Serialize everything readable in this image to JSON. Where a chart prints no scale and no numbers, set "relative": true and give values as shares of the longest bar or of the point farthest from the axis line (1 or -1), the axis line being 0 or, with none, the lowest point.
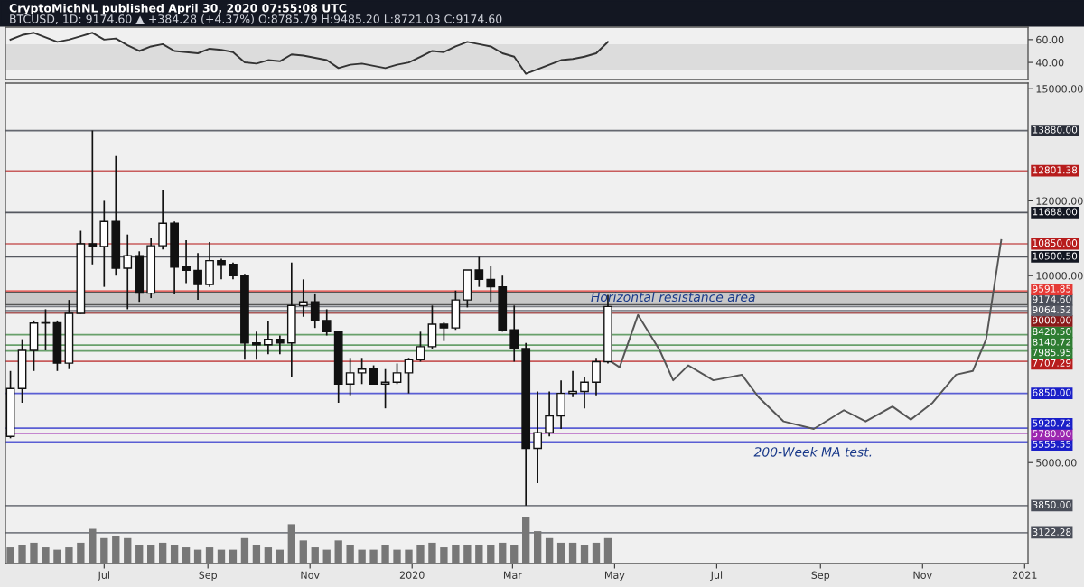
{
  "chart_data": [
    {
      "type": "line",
      "title": "CryptoMichNL published April 30, 2020 07:55:08 UTC",
      "subtitle": "BTCUSD, 1D: 9174.60 ▲ +384.28 (+4.37%) O:8785.79 H:9485.20 L:8721.03 C:9174.60",
      "x": [
        "2019-05-06",
        "2019-05-13",
        "2019-05-20",
        "2019-05-27",
        "2019-06-03",
        "2019-06-10",
        "2019-06-17",
        "2019-06-24",
        "2019-07-01",
        "2019-07-08",
        "2019-07-15",
        "2019-07-22",
        "2019-07-29",
        "2019-08-05",
        "2019-08-12",
        "2019-08-19",
        "2019-08-26",
        "2019-09-02",
        "2019-09-09",
        "2019-09-16",
        "2019-09-23",
        "2019-09-30",
        "2019-10-07",
        "2019-10-14",
        "2019-10-21",
        "2019-10-28",
        "2019-11-04",
        "2019-11-11",
        "2019-11-18",
        "2019-11-25",
        "2019-12-02",
        "2019-12-09",
        "2019-12-16",
        "2019-12-23",
        "2019-12-30",
        "2020-01-06",
        "2020-01-13",
        "2020-01-20",
        "2020-01-27",
        "2020-02-03",
        "2020-02-10",
        "2020-02-17",
        "2020-02-24",
        "2020-03-02",
        "2020-03-09",
        "2020-03-16",
        "2020-03-23",
        "2020-03-30",
        "2020-04-06",
        "2020-04-13",
        "2020-04-20",
        "2020-04-27"
      ],
      "series": [
        {
          "color": "#333333",
          "values": [
            60,
            64,
            66,
            62,
            58,
            60,
            63,
            66,
            60,
            61,
            55,
            50,
            54,
            56,
            50,
            49,
            48,
            52,
            51,
            49,
            40,
            39,
            42,
            41,
            47,
            46,
            44,
            42,
            35,
            38,
            39,
            37,
            35,
            38,
            40,
            45,
            50,
            49,
            54,
            58,
            56,
            54,
            48,
            45,
            30,
            34,
            38,
            42,
            43,
            45,
            48,
            58
          ]
        }
      ],
      "xlim": [
        "2019-05-03",
        "2021-01-03"
      ],
      "ylim": [
        25,
        71
      ],
      "yticks": [
        {
          "value": 40,
          "label": "40.00"
        },
        {
          "value": 60,
          "label": "60.00"
        }
      ],
      "bands": [
        {
          "axis": "y",
          "from": 33,
          "to": 56,
          "color": "#dcdcdc"
        }
      ],
      "tick_labels": "y",
      "grid": false
    },
    {
      "type": "candlestick",
      "x": [
        "2019-05-06",
        "2019-05-13",
        "2019-05-20",
        "2019-05-27",
        "2019-06-03",
        "2019-06-10",
        "2019-06-17",
        "2019-06-24",
        "2019-07-01",
        "2019-07-08",
        "2019-07-15",
        "2019-07-22",
        "2019-07-29",
        "2019-08-05",
        "2019-08-12",
        "2019-08-19",
        "2019-08-26",
        "2019-09-02",
        "2019-09-09",
        "2019-09-16",
        "2019-09-23",
        "2019-09-30",
        "2019-10-07",
        "2019-10-14",
        "2019-10-21",
        "2019-10-28",
        "2019-11-04",
        "2019-11-11",
        "2019-11-18",
        "2019-11-25",
        "2019-12-02",
        "2019-12-09",
        "2019-12-16",
        "2019-12-23",
        "2019-12-30",
        "2020-01-06",
        "2020-01-13",
        "2020-01-20",
        "2020-01-27",
        "2020-02-03",
        "2020-02-10",
        "2020-02-17",
        "2020-02-24",
        "2020-03-02",
        "2020-03-09",
        "2020-03-16",
        "2020-03-23",
        "2020-03-30",
        "2020-04-06",
        "2020-04-13",
        "2020-04-20",
        "2020-04-27"
      ],
      "ohlc": [
        [
          5700,
          7450,
          5650,
          6980
        ],
        [
          6980,
          8300,
          6600,
          8000
        ],
        [
          8000,
          8800,
          7450,
          8730
        ],
        [
          8730,
          9100,
          8000,
          8740
        ],
        [
          8740,
          8800,
          7450,
          7660
        ],
        [
          7660,
          9350,
          7500,
          8990
        ],
        [
          8990,
          11200,
          8980,
          10850
        ],
        [
          10850,
          13880,
          10300,
          10780
        ],
        [
          10780,
          12000,
          9700,
          11450
        ],
        [
          11450,
          13200,
          10000,
          10200
        ],
        [
          10200,
          11100,
          9100,
          10530
        ],
        [
          10530,
          10650,
          9300,
          9530
        ],
        [
          9530,
          11000,
          9400,
          10800
        ],
        [
          10800,
          12300,
          10700,
          11400
        ],
        [
          11400,
          11450,
          9500,
          10230
        ],
        [
          10230,
          10950,
          9800,
          10140
        ],
        [
          10140,
          10600,
          9350,
          9760
        ],
        [
          9760,
          10900,
          9700,
          10400
        ],
        [
          10400,
          10450,
          9900,
          10300
        ],
        [
          10300,
          10350,
          9900,
          10000
        ],
        [
          10000,
          10050,
          7750,
          8200
        ],
        [
          8200,
          8500,
          7750,
          8150
        ],
        [
          8150,
          8800,
          7900,
          8300
        ],
        [
          8300,
          8400,
          7900,
          8200
        ],
        [
          8200,
          10350,
          7300,
          9200
        ],
        [
          9200,
          9900,
          8900,
          9300
        ],
        [
          9300,
          9500,
          8600,
          8800
        ],
        [
          8800,
          9100,
          8400,
          8500
        ],
        [
          8500,
          8500,
          6600,
          7100
        ],
        [
          7100,
          7800,
          6800,
          7400
        ],
        [
          7400,
          7800,
          7100,
          7500
        ],
        [
          7500,
          7600,
          7100,
          7100
        ],
        [
          7100,
          7500,
          6450,
          7150
        ],
        [
          7150,
          7650,
          7100,
          7400
        ],
        [
          7400,
          7800,
          6850,
          7750
        ],
        [
          7750,
          8500,
          7700,
          8100
        ],
        [
          8100,
          9200,
          8050,
          8700
        ],
        [
          8700,
          8750,
          8250,
          8600
        ],
        [
          8600,
          9600,
          8550,
          9350
        ],
        [
          9350,
          10150,
          9150,
          10150
        ],
        [
          10150,
          10500,
          9700,
          9900
        ],
        [
          9900,
          10250,
          9300,
          9700
        ],
        [
          9700,
          10000,
          8500,
          8550
        ],
        [
          8550,
          9200,
          7700,
          8050
        ],
        [
          8050,
          8200,
          3850,
          5380
        ],
        [
          5380,
          6900,
          4450,
          5800
        ],
        [
          5800,
          6900,
          5700,
          6250
        ],
        [
          6250,
          7200,
          5900,
          6850
        ],
        [
          6850,
          7450,
          6750,
          6900
        ],
        [
          6900,
          7300,
          6450,
          7150
        ],
        [
          7150,
          7800,
          6800,
          7700
        ],
        [
          7700,
          9485,
          7650,
          9174.6
        ]
      ],
      "series": [
        {
          "type": "line",
          "color": "#555555",
          "x": [
            "2020-04-29",
            "2020-05-04",
            "2020-05-15",
            "2020-05-28",
            "2020-06-05",
            "2020-06-14",
            "2020-06-29",
            "2020-07-16",
            "2020-07-26",
            "2020-08-10",
            "2020-08-28",
            "2020-09-15",
            "2020-09-28",
            "2020-10-14",
            "2020-10-25",
            "2020-11-07",
            "2020-11-21",
            "2020-12-01",
            "2020-12-09",
            "2020-12-18"
          ],
          "values": [
            7700,
            7550,
            8950,
            8000,
            7200,
            7600,
            7200,
            7350,
            6750,
            6100,
            5900,
            6400,
            6100,
            6500,
            6150,
            6600,
            7350,
            7450,
            8300,
            10950
          ]
        }
      ],
      "xlim": [
        "2019-05-03",
        "2021-01-03"
      ],
      "ylim": [
        2300,
        15150
      ],
      "xticks": [
        {
          "value": "2019-07-01",
          "label": "Jul"
        },
        {
          "value": "2019-09-01",
          "label": "Sep"
        },
        {
          "value": "2019-11-01",
          "label": "Nov"
        },
        {
          "value": "2020-01-01",
          "label": "2020"
        },
        {
          "value": "2020-03-01",
          "label": "Mar"
        },
        {
          "value": "2020-05-01",
          "label": "May"
        },
        {
          "value": "2020-07-01",
          "label": "Jul"
        },
        {
          "value": "2020-09-01",
          "label": "Sep"
        },
        {
          "value": "2020-11-01",
          "label": "Nov"
        },
        {
          "value": "2021-01-01",
          "label": "2021"
        }
      ],
      "yticks": [
        {
          "value": 5000,
          "label": "5000.00"
        },
        {
          "value": 10000,
          "label": "10000.00"
        },
        {
          "value": 12000,
          "label": "12000.00"
        },
        {
          "value": 15000,
          "label": "15000.00"
        }
      ],
      "ref_lines": [
        {
          "axis": "y",
          "value": 13880,
          "label": "13880.00",
          "color": "#2a2e39"
        },
        {
          "axis": "y",
          "value": 12801.38,
          "label": "12801.38",
          "color": "#b71c1c"
        },
        {
          "axis": "y",
          "value": 11688,
          "label": "11688.00",
          "color": "#131722"
        },
        {
          "axis": "y",
          "value": 10850,
          "label": "10850.00",
          "color": "#b71c1c"
        },
        {
          "axis": "y",
          "value": 10500.5,
          "label": "10500.50",
          "color": "#131722"
        },
        {
          "axis": "y",
          "value": 9591.85,
          "label": "9591.85",
          "color": "#e53935"
        },
        {
          "axis": "y",
          "value": 9174.6,
          "label": "9174.60",
          "color": "#4a4e59"
        },
        {
          "axis": "y",
          "value": 9064.52,
          "label": "9064.52",
          "color": "#5d606b"
        },
        {
          "axis": "y",
          "value": 9000,
          "label": "9000.00",
          "color": "#8b1a1a"
        },
        {
          "axis": "y",
          "value": 8420.5,
          "label": "8420.50",
          "color": "#2e7d32"
        },
        {
          "axis": "y",
          "value": 8140.72,
          "label": "8140.72",
          "color": "#2e7d32"
        },
        {
          "axis": "y",
          "value": 7985.95,
          "label": "7985.95",
          "color": "#2e7d32"
        },
        {
          "axis": "y",
          "value": 7707.29,
          "label": "7707.29",
          "color": "#b71c1c"
        },
        {
          "axis": "y",
          "value": 6850,
          "label": "6850.00",
          "color": "#1a1fc8"
        },
        {
          "axis": "y",
          "value": 5920.72,
          "label": "5920.72",
          "color": "#1a1fc8"
        },
        {
          "axis": "y",
          "value": 5780,
          "label": "5780.00",
          "color": "#9c27b0"
        },
        {
          "axis": "y",
          "value": 5555.55,
          "label": "5555.55",
          "color": "#1a1fc8"
        },
        {
          "axis": "y",
          "value": 3850,
          "label": "3850.00",
          "color": "#4a4e59"
        },
        {
          "axis": "y",
          "value": 3122.28,
          "label": "3122.28",
          "color": "#4a4e59"
        }
      ],
      "bands": [
        {
          "axis": "y",
          "from": 9224,
          "to": 9560,
          "color": "#c8c8c8"
        }
      ],
      "annotations": [
        {
          "text": "Horizontal resistance area",
          "x": "2020-06-05",
          "y": 9400
        },
        "200-Week MA test."
      ],
      "grid": false
    },
    {
      "type": "bar",
      "relative": true,
      "color": "#777777",
      "x": [
        "2019-05-06",
        "2019-05-13",
        "2019-05-20",
        "2019-05-27",
        "2019-06-03",
        "2019-06-10",
        "2019-06-17",
        "2019-06-24",
        "2019-07-01",
        "2019-07-08",
        "2019-07-15",
        "2019-07-22",
        "2019-07-29",
        "2019-08-05",
        "2019-08-12",
        "2019-08-19",
        "2019-08-26",
        "2019-09-02",
        "2019-09-09",
        "2019-09-16",
        "2019-09-23",
        "2019-09-30",
        "2019-10-07",
        "2019-10-14",
        "2019-10-21",
        "2019-10-28",
        "2019-11-04",
        "2019-11-11",
        "2019-11-18",
        "2019-11-25",
        "2019-12-02",
        "2019-12-09",
        "2019-12-16",
        "2019-12-23",
        "2019-12-30",
        "2020-01-06",
        "2020-01-13",
        "2020-01-20",
        "2020-01-27",
        "2020-02-03",
        "2020-02-10",
        "2020-02-17",
        "2020-02-24",
        "2020-03-02",
        "2020-03-09",
        "2020-03-16",
        "2020-03-23",
        "2020-03-30",
        "2020-04-06",
        "2020-04-13",
        "2020-04-20",
        "2020-04-27"
      ],
      "values": [
        0.35,
        0.4,
        0.45,
        0.35,
        0.3,
        0.35,
        0.45,
        0.75,
        0.55,
        0.6,
        0.55,
        0.4,
        0.4,
        0.45,
        0.4,
        0.35,
        0.3,
        0.35,
        0.3,
        0.3,
        0.55,
        0.4,
        0.35,
        0.3,
        0.85,
        0.5,
        0.35,
        0.3,
        0.5,
        0.4,
        0.3,
        0.3,
        0.4,
        0.3,
        0.3,
        0.4,
        0.45,
        0.35,
        0.4,
        0.4,
        0.4,
        0.4,
        0.45,
        0.4,
        1.0,
        0.7,
        0.55,
        0.45,
        0.45,
        0.4,
        0.45,
        0.55
      ],
      "xlim": [
        "2019-05-03",
        "2021-01-03"
      ],
      "tick_labels": false
    }
  ]
}
